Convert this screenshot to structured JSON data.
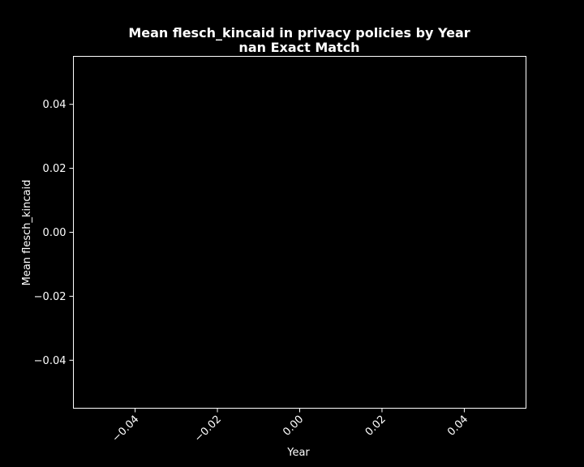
{
  "chart_data": {
    "type": "line",
    "title": "Mean flesch_kincaid in privacy policies by Year",
    "subtitle": "nan Exact Match",
    "xlabel": "Year",
    "ylabel": "Mean flesch_kincaid",
    "xlim": [
      -0.055,
      0.055
    ],
    "ylim": [
      -0.055,
      0.055
    ],
    "x_ticks": [
      -0.04,
      -0.02,
      0.0,
      0.02,
      0.04
    ],
    "x_tick_labels": [
      "−0.04",
      "−0.02",
      "0.00",
      "0.02",
      "0.04"
    ],
    "y_ticks": [
      0.04,
      0.02,
      0.0,
      -0.02,
      -0.04
    ],
    "y_tick_labels": [
      "0.04",
      "0.02",
      "0.00",
      "−0.02",
      "−0.04"
    ],
    "series": [],
    "grid": false,
    "colors": {
      "background": "#000000",
      "foreground": "#ffffff"
    }
  }
}
